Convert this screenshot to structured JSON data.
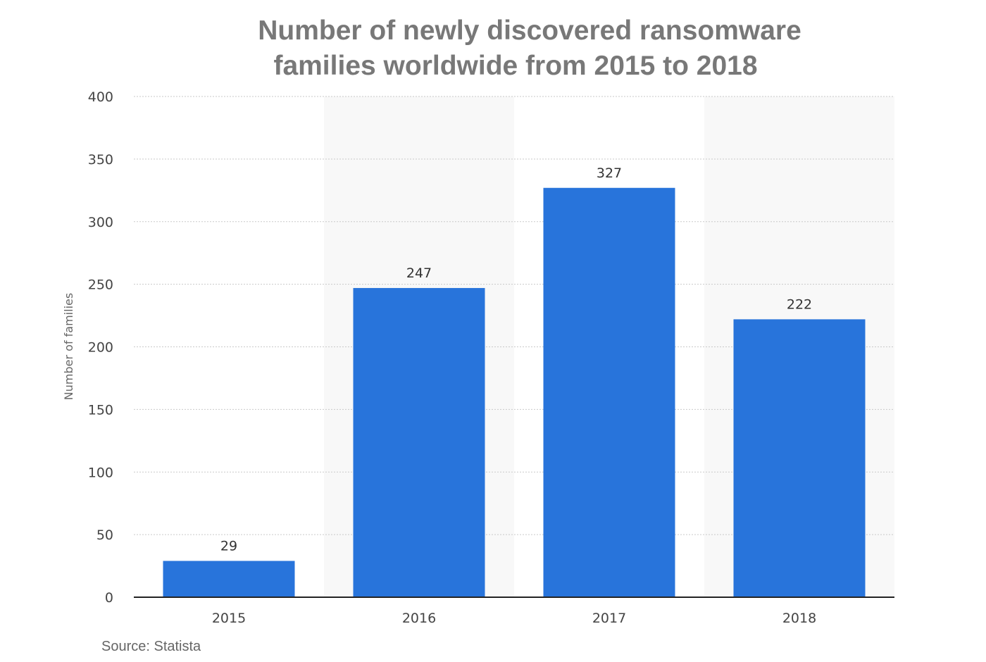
{
  "chart_data": {
    "type": "bar",
    "title": [
      "Number of newly discovered ransomware",
      "families worldwide from 2015 to 2018"
    ],
    "categories": [
      "2015",
      "2016",
      "2017",
      "2018"
    ],
    "values": [
      29,
      247,
      327,
      222
    ],
    "data_labels": [
      "29",
      "247",
      "327",
      "222"
    ],
    "xlabel": "",
    "ylabel": "Number of families",
    "ylim": [
      0,
      400
    ],
    "yticks": [
      "0",
      "50",
      "100",
      "150",
      "200",
      "250",
      "300",
      "350",
      "400"
    ],
    "grid": true,
    "bar_color": "#2874db",
    "band_color": "#f8f8f8"
  },
  "source": "Source: Statista"
}
